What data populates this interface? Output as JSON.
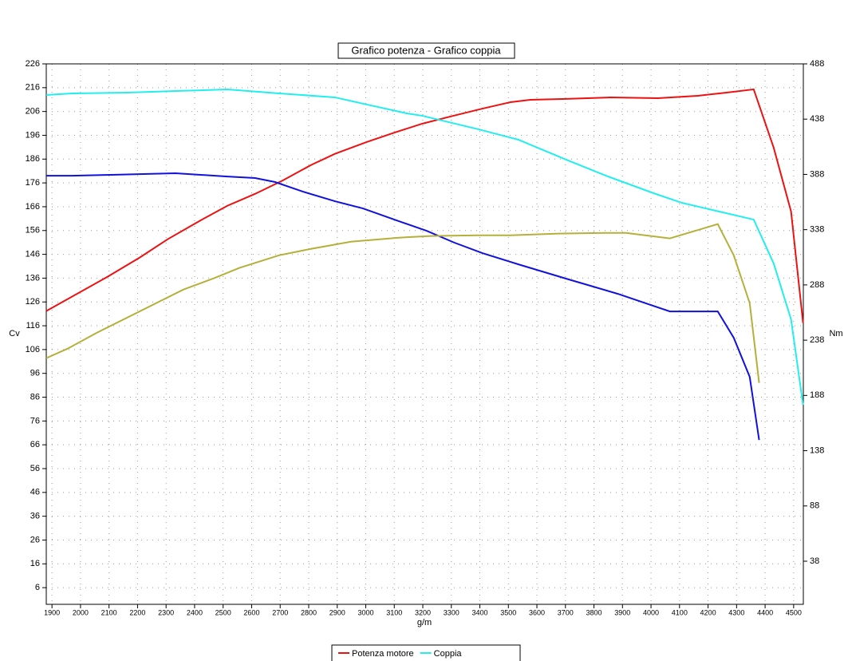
{
  "chart_data": {
    "type": "line",
    "title": "Grafico potenza - Grafico coppia",
    "x_label": "g/m",
    "y_label": "Cv",
    "y2_label": "Nm",
    "xlim": [
      1880,
      4534
    ],
    "xticks": [
      1900,
      2000,
      2100,
      2200,
      2300,
      2400,
      2500,
      2600,
      2700,
      2800,
      2900,
      3000,
      3100,
      3200,
      3300,
      3400,
      3500,
      3600,
      3700,
      3800,
      3900,
      4000,
      4100,
      4200,
      4300,
      4400,
      4500
    ],
    "ylim": [
      -1,
      226
    ],
    "yticks": [
      6,
      16,
      26,
      36,
      46,
      56,
      66,
      76,
      86,
      96,
      106,
      116,
      126,
      136,
      146,
      156,
      166,
      176,
      186,
      196,
      206,
      216,
      226
    ],
    "y2lim": [
      -1,
      488
    ],
    "y2ticks": [
      38,
      88,
      138,
      188,
      238,
      288,
      338,
      388,
      438,
      488
    ],
    "grid": true,
    "series": [
      {
        "name": "Potenza motore",
        "color": "#ee1111",
        "axis": "y",
        "x": [
          1880,
          1970,
          2095,
          2207,
          2305,
          2417,
          2515,
          2612,
          2710,
          2808,
          2892,
          3004,
          3102,
          3199,
          3297,
          3409,
          3507,
          3577,
          3703,
          3857,
          4024,
          4164,
          4262,
          4360,
          4430,
          4491,
          4533
        ],
        "values": [
          122.2,
          128.2,
          136.6,
          144.6,
          152.3,
          160.0,
          166.4,
          171.4,
          177.1,
          183.5,
          188.2,
          193.2,
          197.2,
          200.9,
          203.9,
          207.2,
          209.9,
          210.9,
          211.3,
          211.9,
          211.6,
          212.6,
          213.9,
          215.3,
          190.8,
          164.0,
          117.2
        ]
      },
      {
        "name": "Coppia",
        "color": "#22eeee",
        "axis": "y2",
        "x": [
          1880,
          1970,
          2165,
          2333,
          2515,
          2696,
          2892,
          3004,
          3144,
          3199,
          3395,
          3535,
          3703,
          3842,
          4010,
          4108,
          4360,
          4430,
          4491,
          4533
        ],
        "values": [
          459.8,
          461.3,
          462.0,
          463.4,
          464.9,
          461.3,
          457.7,
          451.2,
          443.2,
          441.0,
          428.8,
          419.4,
          401.3,
          386.8,
          370.9,
          362.3,
          347.1,
          307.4,
          256.8,
          179.5
        ]
      },
      {
        "color": "#1111dd",
        "axis": "y2",
        "x": [
          1880,
          1970,
          2109,
          2333,
          2515,
          2612,
          2682,
          2780,
          2892,
          2990,
          3116,
          3213,
          3311,
          3409,
          3535,
          3703,
          3884,
          4066,
          4234,
          4290,
          4346,
          4379
        ],
        "values": [
          386.8,
          386.8,
          387.6,
          389.0,
          386.1,
          384.7,
          381.1,
          372.4,
          363.7,
          357.2,
          345.7,
          337.0,
          326.2,
          316.8,
          306.6,
          293.6,
          279.9,
          264.0,
          264.0,
          240.2,
          204.8,
          147.7
        ]
      },
      {
        "color": "#b5b03a",
        "axis": "y",
        "x": [
          1880,
          1955,
          2053,
          2165,
          2277,
          2361,
          2473,
          2557,
          2696,
          2808,
          2948,
          3116,
          3227,
          3395,
          3507,
          3675,
          3842,
          3912,
          4066,
          4234,
          4290,
          4346,
          4379
        ],
        "values": [
          102.4,
          106.4,
          112.8,
          119.5,
          126.2,
          131.2,
          136.2,
          140.3,
          145.6,
          148.3,
          151.3,
          153.0,
          153.7,
          154.0,
          154.0,
          154.7,
          155.0,
          155.0,
          152.7,
          158.7,
          145.6,
          125.5,
          92.0
        ]
      }
    ]
  }
}
